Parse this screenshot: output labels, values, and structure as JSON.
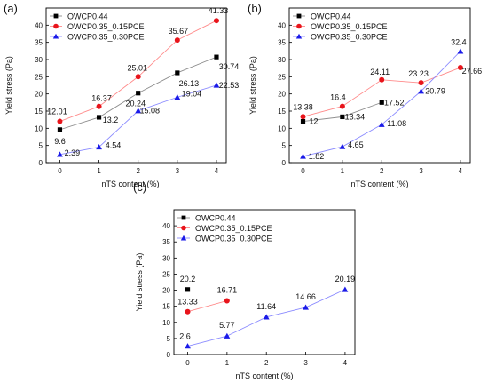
{
  "chart_data": [
    {
      "type": "line",
      "panel_label": "(a)",
      "xlabel": "nTS content (%)",
      "ylabel": "Yield stress (Pa)",
      "x": [
        0,
        1,
        2,
        3,
        4
      ],
      "xlim": [
        -0.35,
        4.25
      ],
      "ylim": [
        0,
        45
      ],
      "xticks": [
        0,
        1,
        2,
        3,
        4
      ],
      "yticks": [
        0,
        5,
        10,
        15,
        20,
        25,
        30,
        35,
        40
      ],
      "grid": false,
      "legend_position": "top-left",
      "series": [
        {
          "name": "OWCP0.44",
          "marker": "square",
          "color": "#000000",
          "line_color": "#8c8c8c",
          "values": [
            9.6,
            13.2,
            20.24,
            26.13,
            30.74
          ],
          "labels": [
            "9.6",
            "13.2",
            "20.24",
            "26.13",
            "30.74"
          ]
        },
        {
          "name": "OWCP0.35_0.15PCE",
          "marker": "circle",
          "color": "#e8141b",
          "line_color": "#ff8a8a",
          "values": [
            12.01,
            16.37,
            25.01,
            35.67,
            41.33
          ],
          "labels": [
            "12.01",
            "16.37",
            "25.01",
            "35.67",
            "41.33"
          ]
        },
        {
          "name": "OWCP0.35_0.30PCE",
          "marker": "triangle",
          "color": "#1a1ae8",
          "line_color": "#8c8cff",
          "values": [
            2.39,
            4.54,
            15.08,
            19.04,
            22.53
          ],
          "labels": [
            "2.39",
            "4.54",
            "15.08",
            "19.04",
            "22.53"
          ]
        }
      ]
    },
    {
      "type": "line",
      "panel_label": "(b)",
      "xlabel": "nTS content (%)",
      "ylabel": "Yield stress (Pa)",
      "x": [
        0,
        1,
        2,
        3,
        4
      ],
      "xlim": [
        -0.35,
        4.25
      ],
      "ylim": [
        0,
        45
      ],
      "xticks": [
        0,
        1,
        2,
        3,
        4
      ],
      "yticks": [
        0,
        5,
        10,
        15,
        20,
        25,
        30,
        35,
        40
      ],
      "grid": false,
      "legend_position": "top-left",
      "series": [
        {
          "name": "OWCP0.44",
          "marker": "square",
          "color": "#000000",
          "line_color": "#8c8c8c",
          "values": [
            12,
            13.34,
            17.52,
            null,
            null
          ],
          "labels": [
            "12",
            "13.34",
            "17.52",
            "",
            ""
          ]
        },
        {
          "name": "OWCP0.35_0.15PCE",
          "marker": "circle",
          "color": "#e8141b",
          "line_color": "#ff8a8a",
          "values": [
            13.38,
            16.4,
            24.11,
            23.23,
            27.66
          ],
          "labels": [
            "13.38",
            "16.4",
            "24.11",
            "23.23",
            "27.66"
          ]
        },
        {
          "name": "OWCP0.35_0.30PCE",
          "marker": "triangle",
          "color": "#1a1ae8",
          "line_color": "#8c8cff",
          "values": [
            1.82,
            4.65,
            11.08,
            20.79,
            32.4
          ],
          "labels": [
            "1.82",
            "4.65",
            "11.08",
            "20.79",
            "32.4"
          ]
        }
      ]
    },
    {
      "type": "line",
      "panel_label": "(c)",
      "xlabel": "nTS content (%)",
      "ylabel": "Yield stress (Pa)",
      "x": [
        0,
        1,
        2,
        3,
        4
      ],
      "xlim": [
        -0.35,
        4.25
      ],
      "ylim": [
        0,
        45
      ],
      "xticks": [
        0,
        1,
        2,
        3,
        4
      ],
      "yticks": [
        0,
        5,
        10,
        15,
        20,
        25,
        30,
        35,
        40
      ],
      "grid": false,
      "legend_position": "top-left",
      "series": [
        {
          "name": "OWCP0.44",
          "marker": "square",
          "color": "#000000",
          "line_color": "#8c8c8c",
          "values": [
            20.2,
            null,
            null,
            null,
            null
          ],
          "labels": [
            "20.2",
            "",
            "",
            "",
            ""
          ]
        },
        {
          "name": "OWCP0.35_0.15PCE",
          "marker": "circle",
          "color": "#e8141b",
          "line_color": "#ff8a8a",
          "values": [
            13.33,
            16.71,
            null,
            null,
            null
          ],
          "labels": [
            "13.33",
            "16.71",
            "",
            "",
            ""
          ]
        },
        {
          "name": "OWCP0.35_0.30PCE",
          "marker": "triangle",
          "color": "#1a1ae8",
          "line_color": "#8c8cff",
          "values": [
            2.6,
            5.77,
            11.64,
            14.66,
            20.19
          ],
          "labels": [
            "2.6",
            "5.77",
            "11.64",
            "14.66",
            "20.19"
          ]
        }
      ]
    }
  ]
}
